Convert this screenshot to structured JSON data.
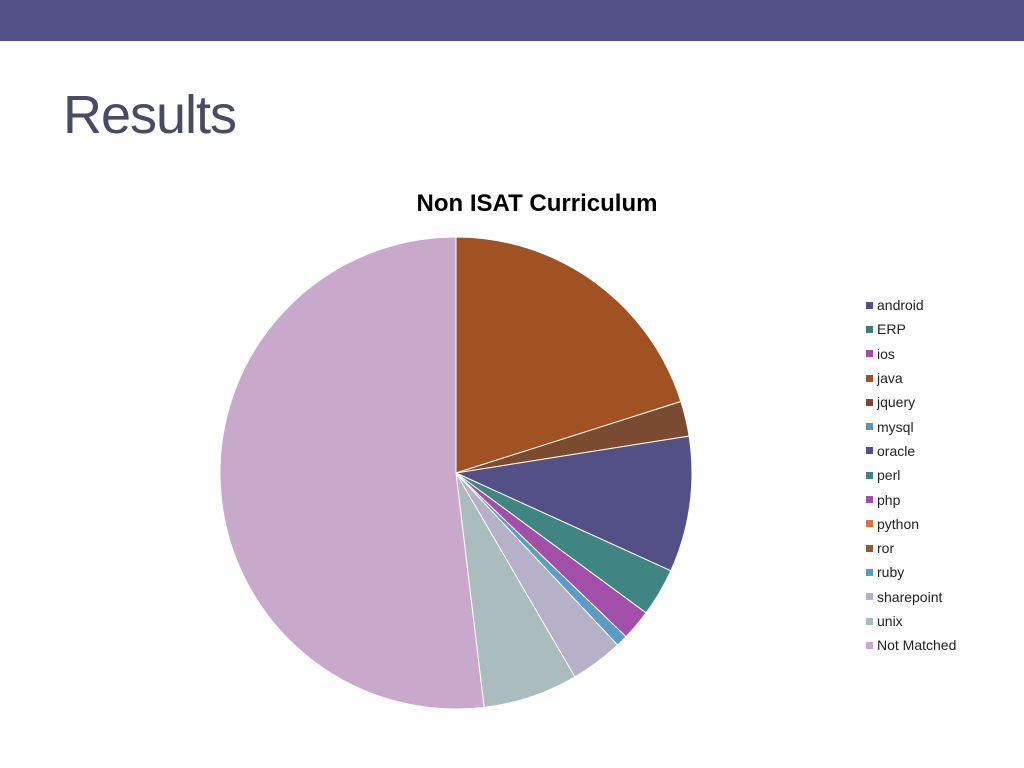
{
  "header": {
    "bar_color": "#535087"
  },
  "slide": {
    "title": "Results"
  },
  "chart_data": {
    "type": "pie",
    "title": "Non ISAT Curriculum",
    "legend_position": "right",
    "start_angle_deg": 0,
    "direction": "clockwise",
    "slices": [
      {
        "label": "android",
        "value": 0.0,
        "color": "#535087"
      },
      {
        "label": "ERP",
        "value": 0.0,
        "color": "#3c7c78"
      },
      {
        "label": "ios",
        "value": 0.0,
        "color": "#a54ba7"
      },
      {
        "label": "java",
        "value": 20.1,
        "color": "#a05222"
      },
      {
        "label": "jquery",
        "value": 2.4,
        "color": "#7b4b31"
      },
      {
        "label": "mysql",
        "value": 0.0,
        "color": "#5a93b6"
      },
      {
        "label": "oracle",
        "value": 9.3,
        "color": "#535087"
      },
      {
        "label": "perl",
        "value": 3.3,
        "color": "#3f8582"
      },
      {
        "label": "php",
        "value": 2.1,
        "color": "#a14fa8"
      },
      {
        "label": "python",
        "value": 0.0,
        "color": "#d4733a"
      },
      {
        "label": "ror",
        "value": 0.0,
        "color": "#8a5a3a"
      },
      {
        "label": "ruby",
        "value": 0.8,
        "color": "#5a9dc4"
      },
      {
        "label": "sharepoint",
        "value": 3.6,
        "color": "#b6b0c8"
      },
      {
        "label": "unix",
        "value": 6.5,
        "color": "#aabcbd"
      },
      {
        "label": "Not Matched",
        "value": 51.9,
        "color": "#c8a9cb"
      }
    ]
  }
}
